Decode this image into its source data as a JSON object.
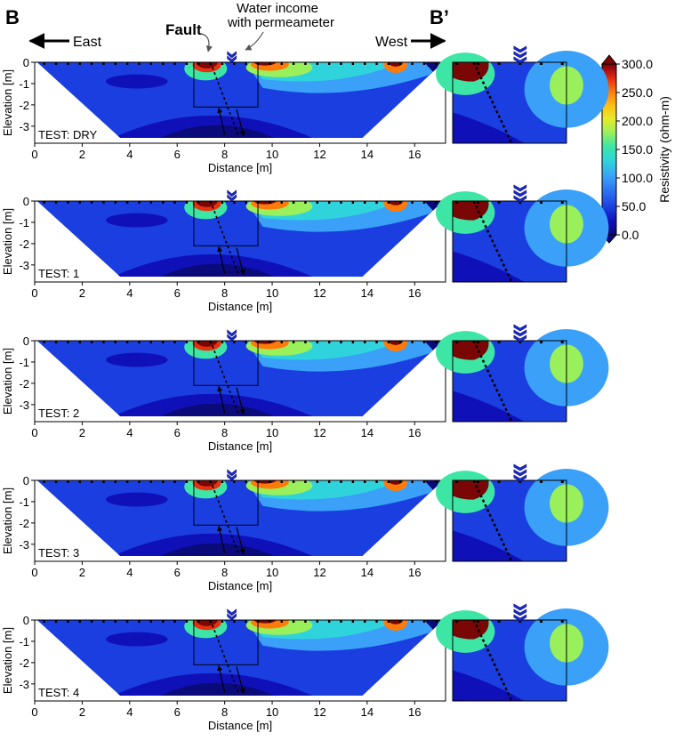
{
  "header": {
    "section_start": "B",
    "section_end": "B’",
    "east": "East",
    "west": "West",
    "fault": "Fault",
    "water_line1": "Water income",
    "water_line2": "with permeameter"
  },
  "colorbar": {
    "label": "Resistivity (ohm-m)",
    "ticks": [
      "300.0",
      "250.0",
      "200.0",
      "150.0",
      "100.0",
      "50.0",
      "0.0"
    ],
    "colors": [
      "#0a0a7a",
      "#1010b8",
      "#1a3ee0",
      "#2c6ff0",
      "#3aa0f8",
      "#2fd3dc",
      "#3ee6a6",
      "#9af05a",
      "#e8ea2a",
      "#ffbe14",
      "#ff7a0a",
      "#e83010",
      "#b01010",
      "#7a0606"
    ]
  },
  "chart_data": {
    "type": "heatmap",
    "xlabel": "Distance [m]",
    "ylabel": "Elevation [m]",
    "xlim": [
      0,
      17.3
    ],
    "ylim": [
      -3.8,
      0
    ],
    "xticks": [
      "0",
      "2",
      "4",
      "6",
      "8",
      "10",
      "12",
      "14",
      "16"
    ],
    "yticks": [
      "0",
      "-1",
      "-2",
      "-3"
    ],
    "colorbar_range": [
      0,
      300
    ],
    "fault_line": {
      "x_top": 7.4,
      "x_bottom": 8.6
    },
    "permeameter_x": 8.3,
    "zoom_box": {
      "x": [
        6.7,
        9.4
      ],
      "y": [
        -2.1,
        0
      ]
    },
    "panels": [
      {
        "test": "TEST: DRY"
      },
      {
        "test": "TEST: 1"
      },
      {
        "test": "TEST: 2"
      },
      {
        "test": "TEST: 3"
      },
      {
        "test": "TEST: 4"
      }
    ]
  }
}
